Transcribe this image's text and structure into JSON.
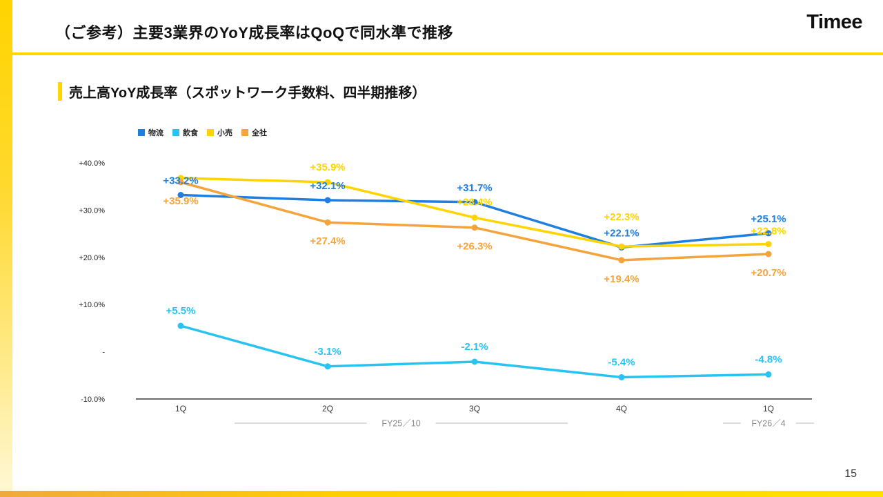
{
  "header": {
    "title": "（ご参考）主要3業界のYoY成長率はQoQで同水準で推移",
    "logo": "Timee"
  },
  "section": {
    "heading": "売上高YoY成長率（スポットワーク手数料、四半期推移）"
  },
  "footer": {
    "page_number": "15"
  },
  "brand": {
    "accent_yellow": "#FFD800"
  },
  "chart_data": {
    "type": "line",
    "title": "売上高YoY成長率（スポットワーク手数料、四半期推移）",
    "grid": false,
    "legend_position": "top-left",
    "x_categories": [
      "1Q",
      "2Q",
      "3Q",
      "4Q",
      "1Q"
    ],
    "x_groups": [
      {
        "label": "FY25／10",
        "from": 0,
        "to": 3
      },
      {
        "label": "FY26／4",
        "from": 4,
        "to": 4
      }
    ],
    "y_ticks": [
      {
        "value": 40,
        "label": "+40.0%"
      },
      {
        "value": 30,
        "label": "+30.0%"
      },
      {
        "value": 20,
        "label": "+20.0%"
      },
      {
        "value": 10,
        "label": "+10.0%"
      },
      {
        "value": 0,
        "label": "-"
      },
      {
        "value": -10,
        "label": "-10.0%"
      }
    ],
    "ylim": [
      -10,
      45
    ],
    "series": [
      {
        "name": "物流",
        "color": "#1F7FE0",
        "values": [
          33.2,
          32.1,
          31.7,
          22.1,
          25.1
        ],
        "labels": [
          "+33.2%",
          "+32.1%",
          "+31.7%",
          "+22.1%",
          "+25.1%"
        ]
      },
      {
        "name": "飲食",
        "color": "#29C3F2",
        "values": [
          5.5,
          -3.1,
          -2.1,
          -5.4,
          -4.8
        ],
        "labels": [
          "+5.5%",
          "-3.1%",
          "-2.1%",
          "-5.4%",
          "-4.8%"
        ]
      },
      {
        "name": "小売",
        "color": "#FFD400",
        "values": [
          36.8,
          35.9,
          28.4,
          22.3,
          22.8
        ],
        "labels": [
          null,
          "+35.9%",
          "+28.4%",
          "+22.3%",
          "+22.8%"
        ]
      },
      {
        "name": "全社",
        "color": "#F5A43C",
        "values": [
          35.9,
          27.4,
          26.3,
          19.4,
          20.7
        ],
        "labels": [
          "+35.9%",
          "+27.4%",
          "+26.3%",
          "+19.4%",
          "+20.7%"
        ]
      }
    ]
  }
}
